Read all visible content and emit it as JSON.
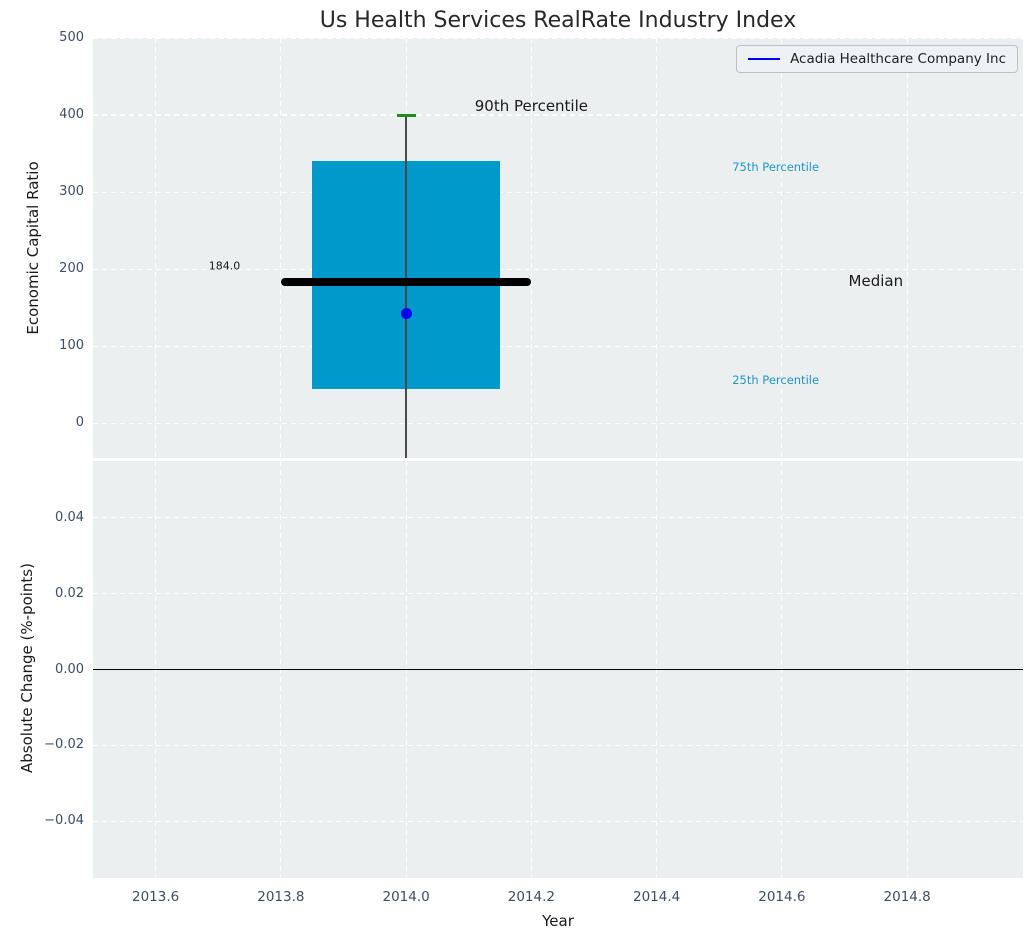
{
  "title": "Us Health Services RealRate Industry Index",
  "legend": {
    "label": "Acadia Healthcare Company Inc"
  },
  "colors": {
    "text": "#1a1a1a",
    "plot_bg": "#eceff0",
    "grid": "#ffffff",
    "tick_label": "#3d4d63",
    "box_fill": "#0099cc",
    "median_line": "#000000",
    "whisker": "#4a4a4a",
    "cap_90th": "#228b22",
    "company_point": "#0000ee",
    "legend_line": "#0000ee",
    "percentile_label": "#2196c4",
    "zero_line": "#000000"
  },
  "chart_data": [
    {
      "type": "box",
      "ylabel": "Economic Capital Ratio",
      "xlim": [
        2013.5,
        2014.985
      ],
      "ylim": [
        -45,
        500
      ],
      "yticks": [
        {
          "v": 500,
          "label": "500"
        },
        {
          "v": 400,
          "label": "400"
        },
        {
          "v": 300,
          "label": "300"
        },
        {
          "v": 200,
          "label": "200"
        },
        {
          "v": 100,
          "label": "100"
        },
        {
          "v": 0,
          "label": "0"
        }
      ],
      "xticks": [
        {
          "v": 2013.6,
          "label": "2013.6"
        },
        {
          "v": 2013.8,
          "label": "2013.8"
        },
        {
          "v": 2014.0,
          "label": "2014.0"
        },
        {
          "v": 2014.2,
          "label": "2014.2"
        },
        {
          "v": 2014.4,
          "label": "2014.4"
        },
        {
          "v": 2014.6,
          "label": "2014.6"
        },
        {
          "v": 2014.8,
          "label": "2014.8"
        }
      ],
      "box": {
        "x": 2014.0,
        "box_width": 0.3,
        "q1": 45,
        "q3": 340,
        "median": 184,
        "median_width": 0.4,
        "p90": 400,
        "p90_cap_width": 0.03,
        "whisker_low": -45
      },
      "company_point": {
        "x": 2014.0,
        "y": 142
      },
      "annotations": [
        {
          "text": "90th Percentile",
          "x": 2014.2,
          "y": 412,
          "style": "large",
          "color_key": "text"
        },
        {
          "text": "75th Percentile",
          "x": 2014.59,
          "y": 333,
          "style": "small",
          "color_key": "percentile_label"
        },
        {
          "text": "Median",
          "x": 2014.75,
          "y": 185,
          "style": "large",
          "color_key": "text"
        },
        {
          "text": "25th Percentile",
          "x": 2014.59,
          "y": 56,
          "style": "small",
          "color_key": "percentile_label"
        },
        {
          "text": "184.0",
          "x": 2013.71,
          "y": 204,
          "style": "tiny",
          "color_key": "text"
        }
      ]
    },
    {
      "type": "line",
      "ylabel": "Absolute Change (%-points)",
      "xlabel": "Year",
      "xlim": [
        2013.5,
        2014.985
      ],
      "ylim": [
        -0.055,
        0.055
      ],
      "yticks": [
        {
          "v": 0.04,
          "label": "0.04"
        },
        {
          "v": 0.02,
          "label": "0.02"
        },
        {
          "v": 0.0,
          "label": "0.00"
        },
        {
          "v": -0.02,
          "label": "−0.02"
        },
        {
          "v": -0.04,
          "label": "−0.04"
        }
      ],
      "xticks": [
        {
          "v": 2013.6,
          "label": "2013.6"
        },
        {
          "v": 2013.8,
          "label": "2013.8"
        },
        {
          "v": 2014.0,
          "label": "2014.0"
        },
        {
          "v": 2014.2,
          "label": "2014.2"
        },
        {
          "v": 2014.4,
          "label": "2014.4"
        },
        {
          "v": 2014.6,
          "label": "2014.6"
        },
        {
          "v": 2014.8,
          "label": "2014.8"
        }
      ],
      "zero_line": 0.0
    }
  ]
}
